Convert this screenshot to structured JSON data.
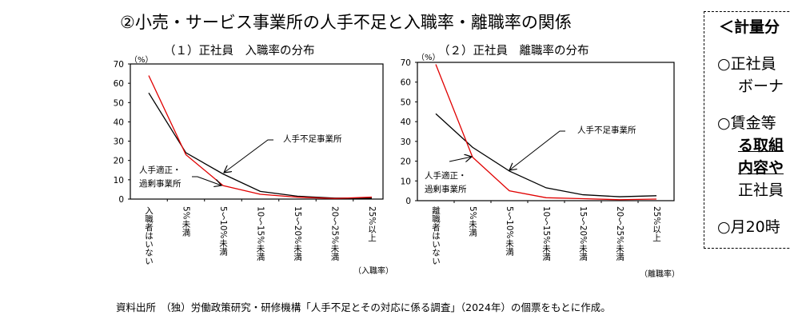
{
  "title": "②小売・サービス事業所の人手不足と入職率・離職率の関係",
  "source": "資料出所　（独）労働政策研究・研修機構「人手不足とその対応に係る調査」（2024年）の個票をもとに作成。",
  "side_box": {
    "heading": "＜計量分",
    "lines": [
      "○正社員",
      "ボーナ",
      "○賃金等",
      "る取組",
      "内容や",
      "正社員",
      "○月20時"
    ]
  },
  "chart_data": [
    {
      "type": "line",
      "title": "（１）正社員　入職率の分布",
      "ylabel": "（%）",
      "xlabel": "（入職率）",
      "ylim": [
        0,
        70
      ],
      "yticks": [
        "0",
        "10",
        "20",
        "30",
        "40",
        "50",
        "60",
        "70"
      ],
      "grid": false,
      "categories": [
        "入職者はいない",
        "5%未満",
        "5～10%未満",
        "10～15%未満",
        "15～20%未満",
        "20～25%未満",
        "25%以上"
      ],
      "series": [
        {
          "name": "人手不足事業所",
          "color": "#000000",
          "values": [
            55,
            24,
            13,
            4,
            1.5,
            0.5,
            0.5
          ]
        },
        {
          "name": "人手適正・過剰事業所",
          "color": "#e00000",
          "values": [
            64,
            23,
            7,
            2.5,
            1,
            0.3,
            1
          ]
        }
      ],
      "annotations": [
        "人手不足事業所",
        "人手適正・",
        "過剰事業所"
      ]
    },
    {
      "type": "line",
      "title": "（２）正社員　離職率の分布",
      "ylabel": "（%）",
      "xlabel": "（離職率）",
      "ylim": [
        0,
        70
      ],
      "yticks": [
        "0",
        "10",
        "20",
        "30",
        "40",
        "50",
        "60",
        "70"
      ],
      "grid": false,
      "categories": [
        "離職者はいない",
        "5%未満",
        "5～10%未満",
        "10～15%未満",
        "15～20%未満",
        "20～25%未満",
        "25%以上"
      ],
      "series": [
        {
          "name": "人手不足事業所",
          "color": "#000000",
          "values": [
            44,
            27,
            15,
            6.5,
            3,
            2,
            2.5
          ]
        },
        {
          "name": "人手適正・過剰事業所",
          "color": "#e00000",
          "values": [
            69,
            22,
            5,
            1.5,
            1,
            0.5,
            0.8
          ]
        }
      ],
      "annotations": [
        "人手不足事業所",
        "人手適正・",
        "過剰事業所"
      ]
    }
  ]
}
